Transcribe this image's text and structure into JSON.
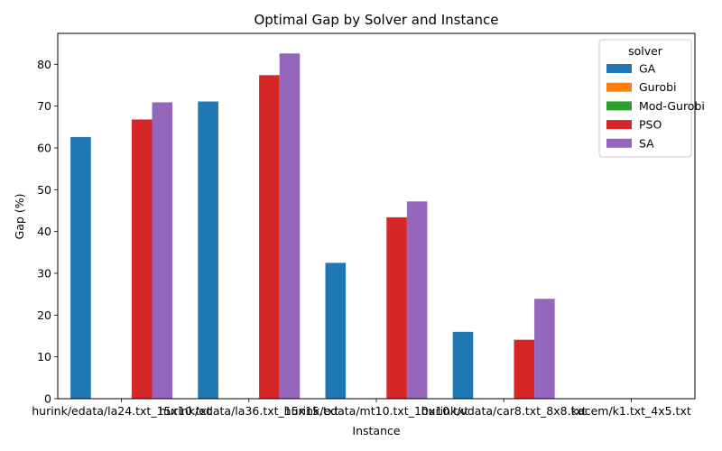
{
  "chart_data": {
    "type": "bar",
    "title": "Optimal Gap by Solver and Instance",
    "xlabel": "Instance",
    "ylabel": "Gap (%)",
    "ylim": [
      0,
      87.4
    ],
    "yticks": [
      0,
      10,
      20,
      30,
      40,
      50,
      60,
      70,
      80
    ],
    "grid": false,
    "legend": {
      "title": "solver",
      "placement": "top-right"
    },
    "categories": [
      "hurink/edata/la24.txt_15x10.txt",
      "hurink/edata/la36.txt_15x15.txt",
      "hurink/edata/mt10.txt_10x10.txt",
      "hurink/vdata/car8.txt_8x8.txt",
      "kacem/k1.txt_4x5.txt"
    ],
    "series": [
      {
        "name": "GA",
        "color": "#1f77b4",
        "values": [
          62.6,
          71.1,
          32.5,
          16.0,
          0
        ]
      },
      {
        "name": "Gurobi",
        "color": "#ff7f0e",
        "values": [
          0,
          0,
          0,
          0,
          0
        ]
      },
      {
        "name": "Mod-Gurobi",
        "color": "#2ca02c",
        "values": [
          0,
          0,
          0,
          0,
          0
        ]
      },
      {
        "name": "PSO",
        "color": "#d62728",
        "values": [
          66.8,
          77.4,
          43.4,
          14.1,
          0
        ]
      },
      {
        "name": "SA",
        "color": "#9467bd",
        "values": [
          70.9,
          82.6,
          47.2,
          23.9,
          0
        ]
      }
    ]
  }
}
